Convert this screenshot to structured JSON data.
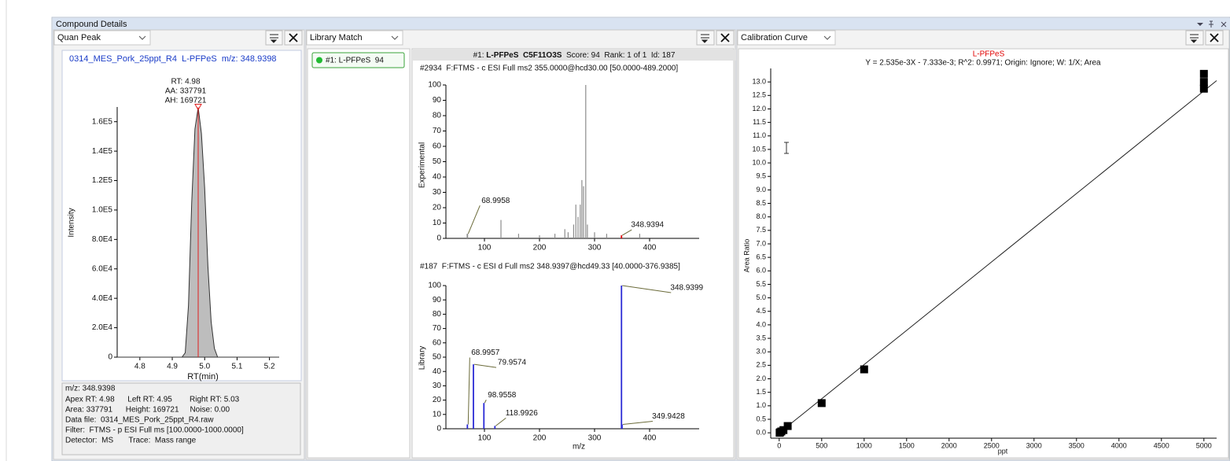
{
  "window": {
    "title": "Compound Details"
  },
  "quan_peak": {
    "view": "Quan Peak",
    "header": "0314_MES_Pork_25ppt_R4  L-PFPeS  m/z: 348.9398",
    "peak_info": [
      "RT: 4.98",
      "AA: 337791",
      "AH: 169721"
    ],
    "chart": {
      "type": "area",
      "x_label": "RT(min)",
      "y_label": "Intensity",
      "x": [
        4.73,
        4.93,
        4.94,
        4.95,
        4.96,
        4.97,
        4.98,
        4.99,
        5.0,
        5.01,
        5.02,
        5.03,
        5.04,
        5.23
      ],
      "values": [
        0,
        0,
        3000,
        35000,
        105000,
        155000,
        169721,
        152000,
        115000,
        62000,
        24000,
        6000,
        0,
        0
      ],
      "color": "#bdbdbd",
      "apex_color": "#e02020",
      "xlim": [
        4.73,
        5.23
      ],
      "xticks": [
        4.8,
        4.9,
        {
          "value": 5,
          "label": "5.0"
        },
        5.1,
        5.2
      ],
      "ylim": [
        0,
        170000
      ],
      "yticks": [
        0,
        {
          "value": 20000,
          "label": "2.0E4"
        },
        {
          "value": 40000,
          "label": "4.0E4"
        },
        {
          "value": 60000,
          "label": "6.0E4"
        },
        {
          "value": 80000,
          "label": "8.0E4"
        },
        {
          "value": 100000,
          "label": "1.0E5"
        },
        {
          "value": 120000,
          "label": "1.2E5"
        },
        {
          "value": 140000,
          "label": "1.4E5"
        },
        {
          "value": 160000,
          "label": "1.6E5"
        }
      ]
    },
    "details": [
      "m/z: 348.9398",
      "Apex RT: 4.98      Left RT: 4.95        Right RT: 5.03",
      "Area: 337791      Height: 169721     Noise: 0.00",
      "Data file:  0314_MES_Pork_25ppt_R4.raw",
      "Filter:  FTMS - p ESI Full ms [100.0000-1000.0000]",
      "Detector:  MS       Trace:  Mass range"
    ]
  },
  "library_match": {
    "view": "Library Match",
    "hits": [
      "#1: L-PFPeS  94"
    ],
    "spectrum_header": {
      "index": "#1:",
      "name": "L-PFPeS",
      "formula": "C5F11O3S",
      "details": "Score: 94  Rank: 1 of 1  Id: 187"
    },
    "experimental": {
      "type": "stem",
      "title": "#2934  F:FTMS - c ESI Full ms2 355.0000@hcd30.00 [50.0000-489.2000]",
      "y_label": "Experimental",
      "color": "#8c8c8c",
      "x": [
        130,
        162,
        200,
        228,
        246,
        252,
        262,
        266,
        270,
        274,
        277,
        280,
        284,
        287,
        300,
        322,
        382
      ],
      "values": [
        12,
        3,
        2,
        3,
        6,
        4,
        9,
        22,
        14,
        22,
        38,
        34,
        100,
        9,
        4,
        3,
        3
      ],
      "labeled_peaks": {
        "x": [
          68.9958,
          348.9394
        ],
        "values": [
          3,
          2
        ],
        "colors": [
          "#8c8c8c",
          "#e00000"
        ]
      },
      "xlim": [
        30,
        490
      ],
      "xticks": [
        100,
        200,
        300,
        400
      ],
      "ylim": [
        0,
        100
      ],
      "yticks": [
        0,
        10,
        20,
        30,
        40,
        50,
        60,
        70,
        80,
        90,
        100
      ]
    },
    "library": {
      "type": "stem",
      "title": "#187  F:FTMS - c ESI d Full ms2 348.9397@hcd49.33 [40.0000-376.9385]",
      "y_label": "Library",
      "x_label": "m/z",
      "color": "#2b2bd6",
      "labeled_peaks": {
        "x": [
          68.9957,
          79.9574,
          98.9558,
          118.9926,
          348.9399,
          349.9428
        ],
        "values": [
          3,
          45,
          18,
          2,
          100,
          3
        ],
        "colors": [
          "#2b2bd6",
          "#2b2bd6",
          "#2b2bd6",
          "#2b2bd6",
          "#2b2bd6",
          "#2b2bd6"
        ]
      },
      "xlim": [
        30,
        490
      ],
      "xticks": [
        100,
        200,
        300,
        400
      ],
      "ylim": [
        0,
        100
      ],
      "yticks": [
        0,
        10,
        20,
        30,
        40,
        50,
        60,
        70,
        80,
        90,
        100
      ]
    }
  },
  "calibration": {
    "view": "Calibration Curve",
    "chart": {
      "type": "scatter",
      "title": "L-PFPeS",
      "title_color": "#e00000",
      "equation": "Y = 2.535e-3X - 7.333e-3; R^2: 0.9971; Origin: Ignore; W: 1/X; Area",
      "x_label": "ppt",
      "y_label": "Area Ratio",
      "x": [
        5,
        10,
        25,
        50,
        100,
        500,
        1000,
        5000,
        5000,
        5000
      ],
      "values": [
        0.0,
        0.02,
        0.05,
        0.1,
        0.25,
        1.1,
        2.35,
        12.75,
        13.0,
        13.3
      ],
      "color": "#000000",
      "fit": {
        "slope": 0.002535,
        "intercept": -0.007333
      },
      "xlim": [
        -100,
        5150
      ],
      "xticks": [
        0,
        500,
        1000,
        1500,
        2000,
        2500,
        3000,
        3500,
        4000,
        4500,
        5000
      ],
      "ylim": [
        -0.2,
        13.5
      ],
      "yticks": [
        {
          "value": 0,
          "label": "0.0"
        },
        0.5,
        {
          "value": 1,
          "label": "1.0"
        },
        1.5,
        {
          "value": 2,
          "label": "2.0"
        },
        2.5,
        {
          "value": 3,
          "label": "3.0"
        },
        3.5,
        {
          "value": 4,
          "label": "4.0"
        },
        4.5,
        {
          "value": 5,
          "label": "5.0"
        },
        5.5,
        {
          "value": 6,
          "label": "6.0"
        },
        6.5,
        {
          "value": 7,
          "label": "7.0"
        },
        7.5,
        {
          "value": 8,
          "label": "8.0"
        },
        8.5,
        {
          "value": 9,
          "label": "9.0"
        },
        9.5,
        {
          "value": 10,
          "label": "10.0"
        },
        10.5,
        {
          "value": 11,
          "label": "11.0"
        },
        11.5,
        {
          "value": 12,
          "label": "12.0"
        },
        12.5,
        {
          "value": 13,
          "label": "13.0"
        }
      ]
    }
  }
}
